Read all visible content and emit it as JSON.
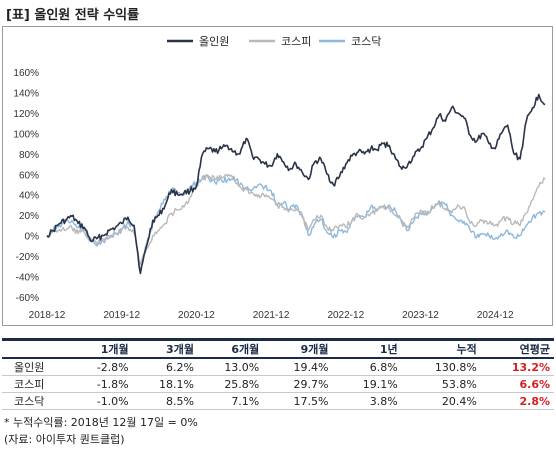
{
  "title": "[표] 올인원 전략 수익률",
  "chart_data": {
    "type": "line",
    "ylim": [
      -60,
      160
    ],
    "yticks": [
      "160%",
      "140%",
      "120%",
      "100%",
      "80%",
      "60%",
      "40%",
      "20%",
      "0%",
      "-20%",
      "-40%",
      "-60%"
    ],
    "xticks": [
      "2018-12",
      "2019-12",
      "2020-12",
      "2021-12",
      "2022-12",
      "2023-12",
      "2024-12"
    ],
    "legend_position": "top-center",
    "grid": false,
    "series": [
      {
        "name": "올인원",
        "color": "#2b3447",
        "x": [
          "2018-12",
          "2019-01",
          "2019-02",
          "2019-03",
          "2019-04",
          "2019-05",
          "2019-06",
          "2019-07",
          "2019-08",
          "2019-09",
          "2019-10",
          "2019-11",
          "2019-12",
          "2020-01",
          "2020-02",
          "2020-03",
          "2020-04",
          "2020-05",
          "2020-06",
          "2020-07",
          "2020-08",
          "2020-09",
          "2020-10",
          "2020-11",
          "2020-12",
          "2021-01",
          "2021-02",
          "2021-03",
          "2021-04",
          "2021-05",
          "2021-06",
          "2021-07",
          "2021-08",
          "2021-09",
          "2021-10",
          "2021-11",
          "2021-12",
          "2022-01",
          "2022-02",
          "2022-03",
          "2022-04",
          "2022-05",
          "2022-06",
          "2022-07",
          "2022-08",
          "2022-09",
          "2022-10",
          "2022-11",
          "2022-12",
          "2023-01",
          "2023-02",
          "2023-03",
          "2023-04",
          "2023-05",
          "2023-06",
          "2023-07",
          "2023-08",
          "2023-09",
          "2023-10",
          "2023-11",
          "2023-12",
          "2024-01",
          "2024-02",
          "2024-03",
          "2024-04",
          "2024-05",
          "2024-06",
          "2024-07",
          "2024-08",
          "2024-09",
          "2024-10",
          "2024-11",
          "2024-12",
          "2025-01",
          "2025-02",
          "2025-03",
          "2025-04",
          "2025-05",
          "2025-06",
          "2025-07",
          "2025-08"
        ],
        "y": [
          0,
          5,
          12,
          15,
          19,
          12,
          8,
          -5,
          -3,
          0,
          5,
          8,
          12,
          18,
          10,
          -37,
          -10,
          15,
          20,
          30,
          45,
          40,
          42,
          44,
          48,
          80,
          85,
          82,
          85,
          88,
          82,
          80,
          95,
          78,
          75,
          70,
          68,
          80,
          72,
          65,
          70,
          62,
          55,
          72,
          75,
          60,
          50,
          58,
          70,
          78,
          82,
          80,
          85,
          84,
          90,
          88,
          75,
          65,
          70,
          78,
          85,
          95,
          105,
          118,
          112,
          125,
          120,
          115,
          98,
          92,
          100,
          90,
          85,
          100,
          108,
          80,
          75,
          112,
          125,
          138,
          128
        ]
      },
      {
        "name": "코스피",
        "color": "#b9b9b9",
        "x": [
          "2018-12",
          "2019-01",
          "2019-02",
          "2019-03",
          "2019-04",
          "2019-05",
          "2019-06",
          "2019-07",
          "2019-08",
          "2019-09",
          "2019-10",
          "2019-11",
          "2019-12",
          "2020-01",
          "2020-02",
          "2020-03",
          "2020-04",
          "2020-05",
          "2020-06",
          "2020-07",
          "2020-08",
          "2020-09",
          "2020-10",
          "2020-11",
          "2020-12",
          "2021-01",
          "2021-02",
          "2021-03",
          "2021-04",
          "2021-05",
          "2021-06",
          "2021-07",
          "2021-08",
          "2021-09",
          "2021-10",
          "2021-11",
          "2021-12",
          "2022-01",
          "2022-02",
          "2022-03",
          "2022-04",
          "2022-05",
          "2022-06",
          "2022-07",
          "2022-08",
          "2022-09",
          "2022-10",
          "2022-11",
          "2022-12",
          "2023-01",
          "2023-02",
          "2023-03",
          "2023-04",
          "2023-05",
          "2023-06",
          "2023-07",
          "2023-08",
          "2023-09",
          "2023-10",
          "2023-11",
          "2023-12",
          "2024-01",
          "2024-02",
          "2024-03",
          "2024-04",
          "2024-05",
          "2024-06",
          "2024-07",
          "2024-08",
          "2024-09",
          "2024-10",
          "2024-11",
          "2024-12",
          "2025-01",
          "2025-02",
          "2025-03",
          "2025-04",
          "2025-05",
          "2025-06",
          "2025-07",
          "2025-08"
        ],
        "y": [
          0,
          4,
          6,
          5,
          8,
          2,
          3,
          -3,
          -8,
          -3,
          0,
          2,
          5,
          8,
          2,
          -28,
          -12,
          0,
          5,
          12,
          22,
          25,
          28,
          38,
          48,
          56,
          58,
          55,
          57,
          58,
          55,
          48,
          45,
          42,
          40,
          38,
          36,
          30,
          28,
          25,
          27,
          18,
          5,
          15,
          20,
          8,
          5,
          10,
          8,
          15,
          20,
          18,
          22,
          24,
          28,
          26,
          20,
          12,
          8,
          18,
          25,
          22,
          28,
          32,
          25,
          22,
          30,
          28,
          12,
          10,
          15,
          12,
          10,
          15,
          18,
          12,
          10,
          22,
          35,
          48,
          55
        ]
      },
      {
        "name": "코스닥",
        "color": "#8fb8de",
        "x": [
          "2018-12",
          "2019-01",
          "2019-02",
          "2019-03",
          "2019-04",
          "2019-05",
          "2019-06",
          "2019-07",
          "2019-08",
          "2019-09",
          "2019-10",
          "2019-11",
          "2019-12",
          "2020-01",
          "2020-02",
          "2020-03",
          "2020-04",
          "2020-05",
          "2020-06",
          "2020-07",
          "2020-08",
          "2020-09",
          "2020-10",
          "2020-11",
          "2020-12",
          "2021-01",
          "2021-02",
          "2021-03",
          "2021-04",
          "2021-05",
          "2021-06",
          "2021-07",
          "2021-08",
          "2021-09",
          "2021-10",
          "2021-11",
          "2021-12",
          "2022-01",
          "2022-02",
          "2022-03",
          "2022-04",
          "2022-05",
          "2022-06",
          "2022-07",
          "2022-08",
          "2022-09",
          "2022-10",
          "2022-11",
          "2022-12",
          "2023-01",
          "2023-02",
          "2023-03",
          "2023-04",
          "2023-05",
          "2023-06",
          "2023-07",
          "2023-08",
          "2023-09",
          "2023-10",
          "2023-11",
          "2023-12",
          "2024-01",
          "2024-02",
          "2024-03",
          "2024-04",
          "2024-05",
          "2024-06",
          "2024-07",
          "2024-08",
          "2024-09",
          "2024-10",
          "2024-11",
          "2024-12",
          "2025-01",
          "2025-02",
          "2025-03",
          "2025-04",
          "2025-05",
          "2025-06",
          "2025-07",
          "2025-08"
        ],
        "y": [
          0,
          6,
          10,
          14,
          15,
          8,
          5,
          -5,
          -10,
          -5,
          -2,
          2,
          6,
          14,
          8,
          -35,
          -8,
          12,
          25,
          35,
          45,
          42,
          40,
          48,
          52,
          58,
          56,
          52,
          55,
          54,
          58,
          50,
          46,
          45,
          50,
          48,
          44,
          30,
          32,
          26,
          30,
          20,
          0,
          12,
          16,
          3,
          -2,
          5,
          4,
          14,
          20,
          18,
          28,
          26,
          28,
          30,
          24,
          15,
          5,
          15,
          22,
          20,
          28,
          34,
          30,
          20,
          15,
          14,
          5,
          -2,
          2,
          0,
          -3,
          2,
          5,
          -2,
          0,
          10,
          18,
          22,
          23
        ]
      }
    ]
  },
  "table": {
    "headers": [
      "1개월",
      "3개월",
      "6개월",
      "9개월",
      "1년",
      "누적",
      "연평균"
    ],
    "rows": [
      {
        "name": "올인원",
        "values": [
          "-2.8%",
          "6.2%",
          "13.0%",
          "19.4%",
          "6.8%",
          "130.8%",
          "13.2%"
        ]
      },
      {
        "name": "코스피",
        "values": [
          "-1.8%",
          "18.1%",
          "25.8%",
          "29.7%",
          "19.1%",
          "53.8%",
          "6.6%"
        ]
      },
      {
        "name": "코스닥",
        "values": [
          "-1.0%",
          "8.5%",
          "7.1%",
          "17.5%",
          "3.8%",
          "20.4%",
          "2.8%"
        ]
      }
    ]
  },
  "footnotes": {
    "note1": "* 누적수익률: 2018년 12월 17일 = 0%",
    "note2": "(자료: 아이투자 퀀트클럽)"
  }
}
